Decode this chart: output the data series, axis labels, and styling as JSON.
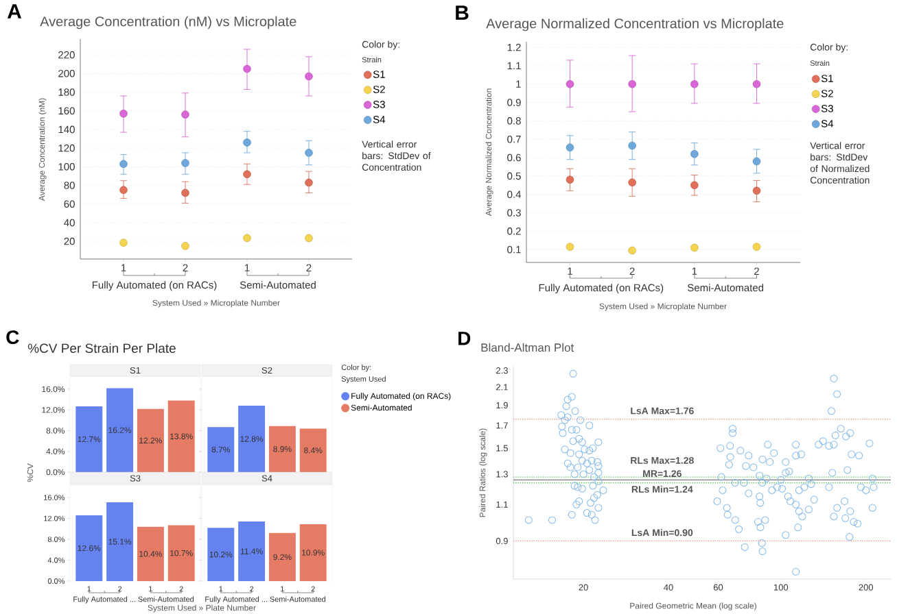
{
  "chart_data": [
    {
      "type": "scatter",
      "title": "Average Concentration (nM) vs Microplate",
      "xlabel": "System Used » Microplate Number",
      "ylabel": "Average Concentration (nM)",
      "legend_title": "Color by:",
      "categories": [
        "1",
        "2",
        "1",
        "2"
      ],
      "ylim": [
        1,
        237
      ],
      "yticks": [
        20,
        40,
        60,
        80,
        100,
        120,
        140,
        160,
        180,
        200,
        220
      ],
      "grid": "y",
      "legend": "right",
      "marker": "circle",
      "annotations": [
        "A",
        "Fully Automated (on RACs)",
        "Semi-Automated",
        "Strain",
        "Vertical error bars: StdDev of Concentration"
      ],
      "series": [
        {
          "name": "S1",
          "color": "#e0705a",
          "values": [
            75,
            72,
            92,
            83
          ],
          "errors": [
            [
              66,
              85
            ],
            [
              61,
              84
            ],
            [
              81,
              103
            ],
            [
              72,
              95
            ]
          ]
        },
        {
          "name": "S2",
          "color": "#f5d451",
          "values": [
            18.5,
            15,
            23.5,
            23.5
          ]
        },
        {
          "name": "S3",
          "color": "#d966d6",
          "values": [
            157,
            156,
            205,
            197
          ],
          "errors": [
            [
              137,
              176
            ],
            [
              132,
              179
            ],
            [
              183,
              226
            ],
            [
              176,
              218
            ]
          ]
        },
        {
          "name": "S4",
          "color": "#6fa8dc",
          "values": [
            103,
            104,
            126,
            115
          ],
          "errors": [
            [
              92,
              113
            ],
            [
              92,
              115
            ],
            [
              115,
              138
            ],
            [
              102,
              128
            ]
          ]
        }
      ]
    },
    {
      "type": "scatter",
      "title": "Average Normalized Concentration vs Microplate",
      "xlabel": "System Used » Microplate Number",
      "ylabel": "Average Normalized Concentration",
      "legend_title": "Color by:",
      "categories": [
        "1",
        "2",
        "1",
        "2"
      ],
      "ylim": [
        0.03,
        1.23
      ],
      "yticks": [
        0.1,
        0.2,
        0.3,
        0.4,
        0.5,
        0.6,
        0.7,
        0.8,
        0.9,
        1,
        1.1,
        1.2
      ],
      "grid": "y",
      "legend": "right",
      "marker": "circle",
      "annotations": [
        "B",
        "Fully Automated (on RACs)",
        "Semi-Automated",
        "Strain",
        "Vertical error bars: StdDev of Normalized Concentration"
      ],
      "series": [
        {
          "name": "S1",
          "color": "#e0705a",
          "values": [
            0.48,
            0.465,
            0.45,
            0.42
          ],
          "errors": [
            [
              0.42,
              0.54
            ],
            [
              0.39,
              0.54
            ],
            [
              0.395,
              0.505
            ],
            [
              0.36,
              0.475
            ]
          ]
        },
        {
          "name": "S2",
          "color": "#f5d451",
          "values": [
            0.115,
            0.095,
            0.11,
            0.115
          ]
        },
        {
          "name": "S3",
          "color": "#d966d6",
          "values": [
            1,
            1,
            1,
            1
          ],
          "errors": [
            [
              0.875,
              1.13
            ],
            [
              0.85,
              1.155
            ],
            [
              0.895,
              1.11
            ],
            [
              0.895,
              1.11
            ]
          ]
        },
        {
          "name": "S4",
          "color": "#6fa8dc",
          "values": [
            0.655,
            0.665,
            0.62,
            0.58
          ],
          "errors": [
            [
              0.59,
              0.72
            ],
            [
              0.59,
              0.74
            ],
            [
              0.56,
              0.68
            ],
            [
              0.515,
              0.645
            ]
          ]
        }
      ]
    },
    {
      "type": "bar",
      "title": "S1",
      "ylabel": "%CV",
      "categories": [
        "1",
        "2",
        "1",
        "2"
      ],
      "ylim": [
        0,
        18.5
      ],
      "yticks": [
        {
          "value": 0,
          "label": "0.0%"
        },
        {
          "value": 4,
          "label": "4.0%"
        },
        {
          "value": 8,
          "label": "8.0%"
        },
        {
          "value": 12,
          "label": "12.0%"
        },
        {
          "value": 16,
          "label": "16.0%"
        }
      ],
      "tick_labels": "y",
      "annotations": [
        "C",
        "%CV Per Strain Per Plate"
      ],
      "series": [
        {
          "color": "#6583f0",
          "values": [
            12.7,
            16.2,
            null,
            null
          ],
          "value_labels": [
            "12.7%",
            "16.2%",
            null,
            null
          ]
        },
        {
          "color": "#e57a65",
          "values": [
            null,
            null,
            12.2,
            13.8
          ],
          "value_labels": [
            null,
            null,
            "12.2%",
            "13.8%"
          ]
        }
      ]
    },
    {
      "type": "bar",
      "title": "S2",
      "legend_title": "Color by:",
      "legend": "right",
      "categories": [
        "1",
        "2",
        "1",
        "2"
      ],
      "ylim": [
        0,
        18.5
      ],
      "yticks": [
        {
          "value": 0,
          "label": null
        },
        {
          "value": 4,
          "label": null
        },
        {
          "value": 8,
          "label": null
        },
        {
          "value": 12,
          "label": null
        },
        {
          "value": 16,
          "label": null
        }
      ],
      "tick_labels": false,
      "annotations": [
        "System Used"
      ],
      "series": [
        {
          "name": "Fully Automated (on RACs)",
          "color": "#6583f0",
          "values": [
            8.7,
            12.8,
            null,
            null
          ],
          "value_labels": [
            "8.7%",
            "12.8%",
            null,
            null
          ]
        },
        {
          "name": "Semi-Automated",
          "color": "#e57a65",
          "values": [
            null,
            null,
            8.9,
            8.4
          ],
          "value_labels": [
            null,
            null,
            "8.9%",
            "8.4%"
          ]
        }
      ]
    },
    {
      "type": "bar",
      "title": "S3",
      "xlabel": "System Used » Plate Number",
      "categories": [
        "1",
        "2",
        "1",
        "2"
      ],
      "ylim": [
        0,
        18.5
      ],
      "yticks": [
        {
          "value": 0,
          "label": "0.0%"
        },
        {
          "value": 4,
          "label": "4.0%"
        },
        {
          "value": 8,
          "label": "8.0%"
        },
        {
          "value": 12,
          "label": "12.0%"
        },
        {
          "value": 16,
          "label": "16.0%"
        }
      ],
      "annotations": [
        "Fully Automated ...",
        "Semi-Automated"
      ],
      "series": [
        {
          "color": "#6583f0",
          "values": [
            12.6,
            15.1,
            null,
            null
          ],
          "value_labels": [
            "12.6%",
            "15.1%",
            null,
            null
          ]
        },
        {
          "color": "#e57a65",
          "values": [
            null,
            null,
            10.4,
            10.7
          ],
          "value_labels": [
            null,
            null,
            "10.4%",
            "10.7%"
          ]
        }
      ]
    },
    {
      "type": "bar",
      "title": "S4",
      "categories": [
        "1",
        "2",
        "1",
        "2"
      ],
      "ylim": [
        0,
        18.5
      ],
      "yticks": [
        {
          "value": 0,
          "label": null
        },
        {
          "value": 4,
          "label": null
        },
        {
          "value": 8,
          "label": null
        },
        {
          "value": 12,
          "label": null
        },
        {
          "value": 16,
          "label": null
        }
      ],
      "tick_labels": "x",
      "annotations": [
        "Fully Automated ...",
        "Semi-Automated"
      ],
      "series": [
        {
          "color": "#6583f0",
          "values": [
            10.2,
            11.4,
            null,
            null
          ],
          "value_labels": [
            "10.2%",
            "11.4%",
            null,
            null
          ]
        },
        {
          "color": "#e57a65",
          "values": [
            null,
            null,
            9.2,
            10.9
          ],
          "value_labels": [
            null,
            null,
            "9.2%",
            "10.9%"
          ]
        }
      ]
    },
    {
      "type": "scatter",
      "title": "Bland-Altman Plot",
      "xlabel": "Paired Geometric Mean (log scale)",
      "ylabel": "Paired Ratios (log scale)",
      "log": "xy",
      "marker": "circle",
      "xlim": [
        11.3,
        245
      ],
      "ylim": [
        0.73,
        2.35
      ],
      "xticks": [
        20,
        40,
        60,
        100,
        200
      ],
      "yticks": [
        0.9,
        1.1,
        1.3,
        1.5,
        1.7,
        1.9,
        2.1,
        2.3
      ],
      "annotations": [
        "D"
      ],
      "ref_lines": [
        {
          "axis": "y",
          "value": 1.76,
          "label": "LsA Max=1.76",
          "color": "#f08a75",
          "line_style": "dotted"
        },
        {
          "axis": "y",
          "value": 1.28,
          "label": "RLs Max=1.28",
          "color": "#4cc24c",
          "line_style": "dotted"
        },
        {
          "axis": "y",
          "value": 1.26,
          "label": "MR=1.26",
          "color": "#555555",
          "line_style": "solid"
        },
        {
          "axis": "y",
          "value": 1.24,
          "label": "RLs Min=1.24",
          "color": "#4cc24c",
          "line_style": "dotted"
        },
        {
          "axis": "y",
          "value": 0.9,
          "label": "LsA Min=0.90",
          "color": "#f08a75",
          "line_style": "dotted"
        }
      ],
      "x": [
        18.4,
        18.2,
        17.6,
        18.7,
        17.4,
        16.7,
        17.2,
        17.6,
        19.5,
        21.0,
        16.8,
        16.9,
        18.2,
        18.9,
        18.4,
        19.3,
        19.8,
        17.2,
        18.0,
        19.3,
        20.2,
        21.0,
        21.6,
        22.6,
        17.6,
        18.0,
        19.1,
        19.8,
        20.6,
        21.4,
        22.4,
        22.6,
        18.6,
        20.0,
        21.0,
        21.8,
        22.6,
        18.6,
        19.1,
        19.8,
        21.6,
        22.6,
        23.5,
        22.4,
        21.8,
        19.3,
        18.9,
        21.2,
        20.6,
        21.4,
        22.6,
        18.2,
        22.0,
        12.8,
        15.5,
        154,
        158,
        151,
        67.5,
        67.5,
        61.1,
        66.1,
        71.9,
        76.9,
        66.2,
        65.6,
        75.2,
        80.0,
        86.1,
        89.9,
        94.5,
        91.3,
        113,
        113,
        118,
        136,
        141,
        148,
        154,
        156,
        163,
        170,
        176,
        178,
        189,
        206,
        61.6,
        62.2,
        59.5,
        64.4,
        64.8,
        68.9,
        71.0,
        74.5,
        68.9,
        74.0,
        76.9,
        84,
        86,
        89,
        84,
        84.5,
        83,
        84.6,
        86.1,
        85.7,
        88,
        93,
        97,
        100,
        104,
        106,
        108,
        113,
        104,
        113,
        115,
        116,
        121,
        125.5,
        128,
        131,
        125.5,
        119,
        116,
        148,
        154,
        158,
        168,
        169,
        176,
        181,
        187,
        175,
        192,
        200,
        211,
        213,
        211,
        152,
        172,
        104,
        107,
        101
      ],
      "series": [
        {
          "color": "#82b8e8",
          "values": [
            2.26,
            1.99,
            1.96,
            1.84,
            1.89,
            1.8,
            1.75,
            1.78,
            1.75,
            1.7,
            1.69,
            1.63,
            1.66,
            1.66,
            1.56,
            1.58,
            1.55,
            1.49,
            1.46,
            1.45,
            1.49,
            1.48,
            1.5,
            1.55,
            1.38,
            1.35,
            1.35,
            1.4,
            1.38,
            1.4,
            1.39,
            1.36,
            1.3,
            1.3,
            1.33,
            1.28,
            1.31,
            1.22,
            1.21,
            1.2,
            1.22,
            1.25,
            1.19,
            1.16,
            1.14,
            1.12,
            1.1,
            1.11,
            1.05,
            1.04,
            1.08,
            1.04,
            1.01,
            1.01,
            1.01,
            2.2,
            2.02,
            1.84,
            1.67,
            1.63,
            1.5,
            1.52,
            1.48,
            1.44,
            1.43,
            1.37,
            1.36,
            1.35,
            1.41,
            1.53,
            1.46,
            1.39,
            1.53,
            1.44,
            1.45,
            1.53,
            1.56,
            1.52,
            1.53,
            1.61,
            1.67,
            1.6,
            1.63,
            1.45,
            1.44,
            1.54,
            1.28,
            1.19,
            1.12,
            1.08,
            1.04,
            1.01,
            0.96,
            0.87,
            1.24,
            1.24,
            1.17,
            1.29,
            1.24,
            1.27,
            1.15,
            1.11,
            1.0,
            0.97,
            0.85,
            0.89,
            1.01,
            1.19,
            1.21,
            1.26,
            1.31,
            1.15,
            1.12,
            1.1,
            0.93,
            0.76,
            0.97,
            1.19,
            1.21,
            1.27,
            1.23,
            1.13,
            1.07,
            1.03,
            1.06,
            1.21,
            1.03,
            1.08,
            1.12,
            1.02,
            1.06,
            1.0,
            0.99,
            0.92,
            1.21,
            1.19,
            1.08,
            1.21,
            1.27,
            1.31,
            1.33,
            1.39,
            1.32,
            1.2
          ]
        }
      ]
    }
  ]
}
